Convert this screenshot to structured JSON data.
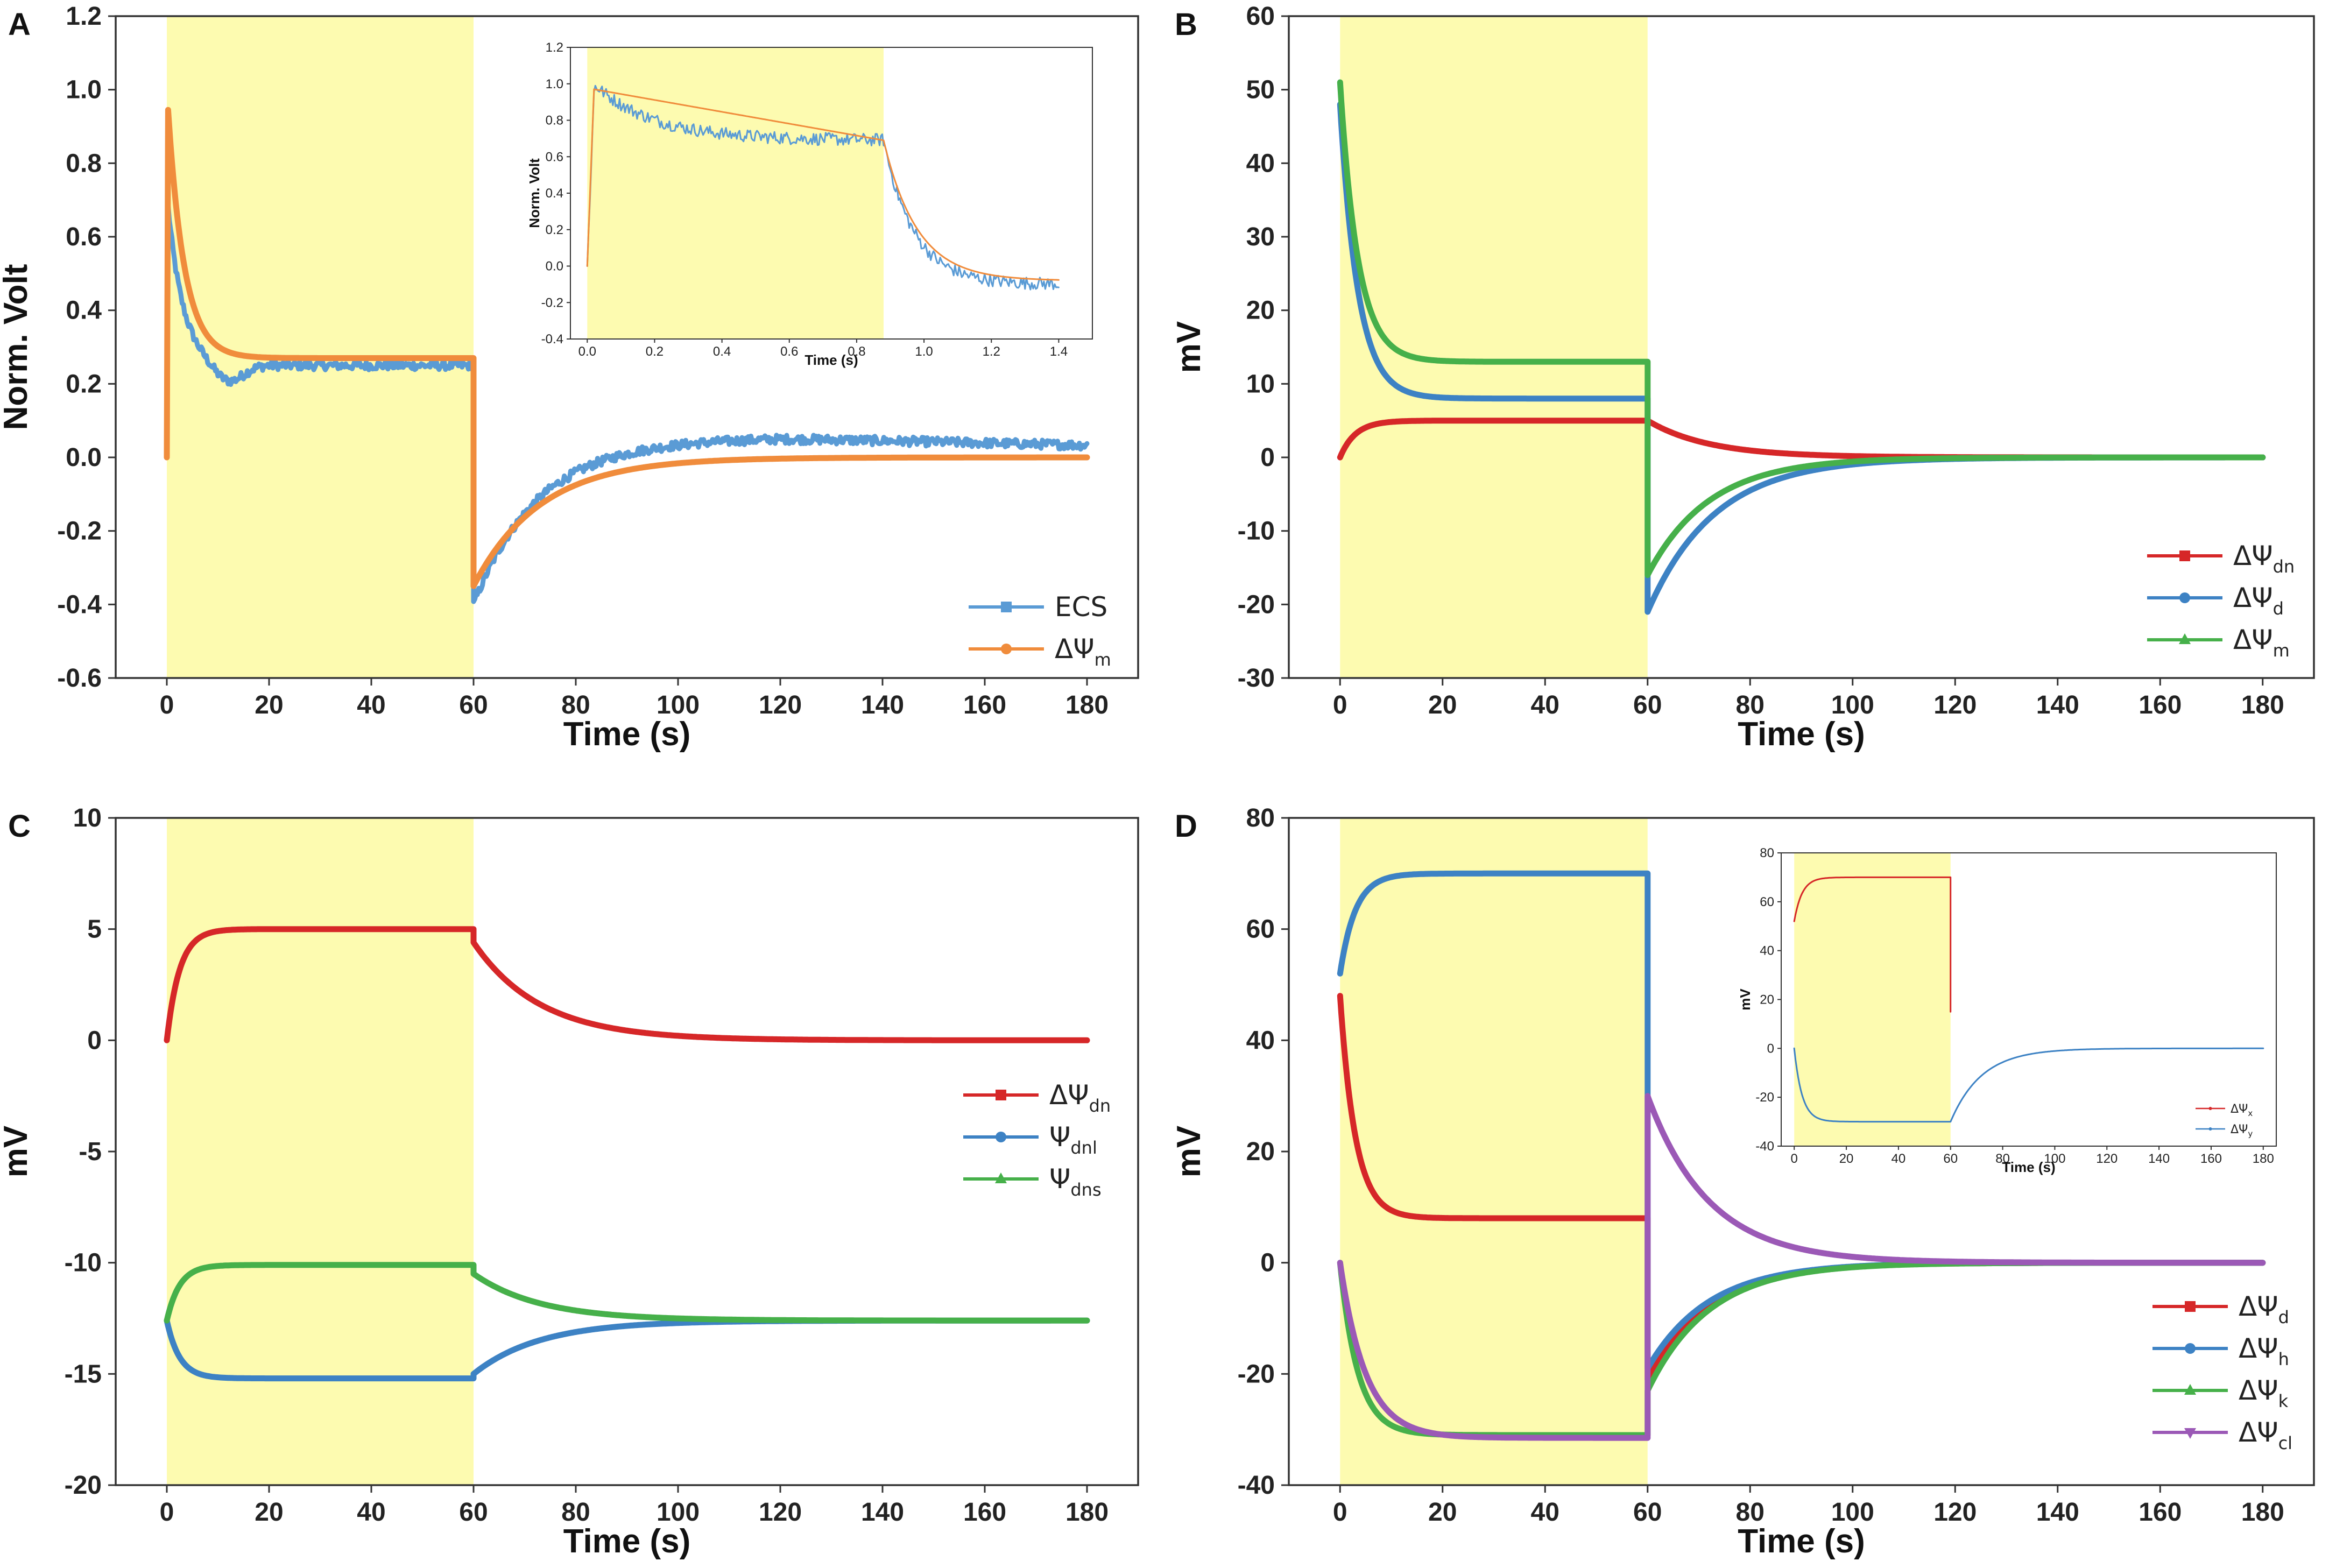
{
  "colors": {
    "red": "#d62728",
    "blue": "#3d82c4",
    "green": "#46b04a",
    "purple": "#9b59b6",
    "orange": "#f08c3c",
    "ecs_blue": "#5a9bd5",
    "highlight": "#fdfbb0"
  },
  "chart_data": [
    {
      "panel": "A",
      "type": "line",
      "xlabel": "Time (s)",
      "ylabel": "Norm. Volt",
      "xlim": [
        -10,
        190
      ],
      "ylim": [
        -0.6,
        1.2
      ],
      "xticks": [
        "0",
        "20",
        "40",
        "60",
        "80",
        "100",
        "120",
        "140",
        "160",
        "180"
      ],
      "yticks": [
        "-0.6",
        "-0.4",
        "-0.2",
        "0.0",
        "0.2",
        "0.4",
        "0.6",
        "0.8",
        "1.0",
        "1.2"
      ],
      "stimulus_window": [
        0,
        60
      ],
      "legend_position": "bottom-right",
      "series": [
        {
          "name": "ECS",
          "legend_main": "ECS",
          "legend_sub": "",
          "color": "ecs_blue",
          "marker": "square",
          "model": {
            "kind": "ecs_a",
            "noise": 0.012
          }
        },
        {
          "name": "ΔΨm",
          "legend_main": "ΔΨ",
          "legend_sub": "m",
          "color": "orange",
          "marker": "circle",
          "model": {
            "kind": "orange_a"
          }
        }
      ],
      "inset": {
        "xlabel": "Time (s)",
        "ylabel": "Norm. Volt",
        "xlim": [
          -0.05,
          1.5
        ],
        "ylim": [
          -0.4,
          1.2
        ],
        "xticks": [
          "0.0",
          "0.2",
          "0.4",
          "0.6",
          "0.8",
          "1.0",
          "1.2",
          "1.4"
        ],
        "yticks": [
          "-0.4",
          "-0.2",
          "0.0",
          "0.2",
          "0.4",
          "0.6",
          "0.8",
          "1.0",
          "1.2"
        ],
        "stimulus_window": [
          0,
          0.88
        ],
        "series": [
          {
            "name": "ECS",
            "color": "ecs_blue",
            "model": {
              "kind": "inset_a_ecs"
            }
          },
          {
            "name": "ΔΨm",
            "color": "orange",
            "model": {
              "kind": "inset_a_orange"
            }
          }
        ]
      }
    },
    {
      "panel": "B",
      "type": "line",
      "xlabel": "Time (s)",
      "ylabel": "mV",
      "xlim": [
        -10,
        190
      ],
      "ylim": [
        -30,
        60
      ],
      "xticks": [
        "0",
        "20",
        "40",
        "60",
        "80",
        "100",
        "120",
        "140",
        "160",
        "180"
      ],
      "yticks": [
        "-30",
        "-20",
        "-10",
        "0",
        "10",
        "20",
        "30",
        "40",
        "50",
        "60"
      ],
      "stimulus_window": [
        0,
        60
      ],
      "legend_position": "bottom-right",
      "series": [
        {
          "name": "ΔΨdn",
          "legend_main": "ΔΨ",
          "legend_sub": "dn",
          "color": "red",
          "marker": "square",
          "model": {
            "kind": "onoff",
            "start": 0,
            "on_tau": 3,
            "on_plateau": 5,
            "off_jump": 5,
            "off_tau": 12
          }
        },
        {
          "name": "ΔΨd",
          "legend_main": "ΔΨ",
          "legend_sub": "d",
          "color": "blue",
          "marker": "circle",
          "model": {
            "kind": "onoff",
            "start": 48,
            "on_tau": 3.5,
            "on_plateau": 8,
            "off_jump": -21,
            "off_tau": 13
          }
        },
        {
          "name": "ΔΨm",
          "legend_main": "ΔΨ",
          "legend_sub": "m",
          "color": "green",
          "marker": "triangle",
          "model": {
            "kind": "onoff",
            "start": 51,
            "on_tau": 3.5,
            "on_plateau": 13,
            "off_jump": -16,
            "off_tau": 12
          }
        }
      ]
    },
    {
      "panel": "C",
      "type": "line",
      "xlabel": "Time (s)",
      "ylabel": "mV",
      "xlim": [
        -10,
        190
      ],
      "ylim": [
        -20,
        10
      ],
      "xticks": [
        "0",
        "20",
        "40",
        "60",
        "80",
        "100",
        "120",
        "140",
        "160",
        "180"
      ],
      "yticks": [
        "-20",
        "-15",
        "-10",
        "-5",
        "0",
        "5",
        "10"
      ],
      "stimulus_window": [
        0,
        60
      ],
      "legend_position": "center-right",
      "series": [
        {
          "name": "ΔΨdn",
          "legend_main": "ΔΨ",
          "legend_sub": "dn",
          "color": "red",
          "marker": "square",
          "model": {
            "kind": "onoff",
            "start": 0,
            "on_tau": 2.5,
            "on_plateau": 5,
            "off_jump": 4.4,
            "off_tau": 13,
            "rest": 0
          }
        },
        {
          "name": "Ψdnl",
          "legend_main": "Ψ",
          "legend_sub": "dnl",
          "color": "blue",
          "marker": "circle",
          "model": {
            "kind": "onoff",
            "start": -12.6,
            "on_tau": 2.5,
            "on_plateau": -15.2,
            "off_jump": -15,
            "off_tau": 13,
            "rest": -12.6
          }
        },
        {
          "name": "Ψdns",
          "legend_main": "Ψ",
          "legend_sub": "dns",
          "color": "green",
          "marker": "triangle",
          "model": {
            "kind": "onoff",
            "start": -12.6,
            "on_tau": 2.5,
            "on_plateau": -10.1,
            "off_jump": -10.5,
            "off_tau": 13,
            "rest": -12.6
          }
        }
      ]
    },
    {
      "panel": "D",
      "type": "line",
      "xlabel": "Time (s)",
      "ylabel": "mV",
      "xlim": [
        -10,
        190
      ],
      "ylim": [
        -40,
        80
      ],
      "xticks": [
        "0",
        "20",
        "40",
        "60",
        "80",
        "100",
        "120",
        "140",
        "160",
        "180"
      ],
      "yticks": [
        "-40",
        "-20",
        "0",
        "20",
        "40",
        "60",
        "80"
      ],
      "stimulus_window": [
        0,
        60
      ],
      "legend_position": "bottom-right",
      "series": [
        {
          "name": "ΔΨd",
          "legend_main": "ΔΨ",
          "legend_sub": "d",
          "color": "red",
          "marker": "square",
          "model": {
            "kind": "onoff",
            "start": 48,
            "on_tau": 3,
            "on_plateau": 8,
            "off_jump": -21,
            "off_tau": 12,
            "rest": 0
          }
        },
        {
          "name": "ΔΨh",
          "legend_main": "ΔΨ",
          "legend_sub": "h",
          "color": "blue",
          "marker": "circle",
          "model": {
            "kind": "onoff_vjump",
            "start": 52,
            "on_tau": 3,
            "on_plateau": 70,
            "off_jump": -19,
            "off_tau": 12,
            "rest": 0
          }
        },
        {
          "name": "ΔΨk",
          "legend_main": "ΔΨ",
          "legend_sub": "k",
          "color": "green",
          "marker": "triangle",
          "model": {
            "kind": "onoff",
            "start": 0,
            "on_tau": 3.5,
            "on_plateau": -31,
            "off_jump": -23,
            "off_tau": 12,
            "rest": 0
          }
        },
        {
          "name": "ΔΨcl",
          "legend_main": "ΔΨ",
          "legend_sub": "cl",
          "color": "purple",
          "marker": "triangle-down",
          "model": {
            "kind": "onoff",
            "start": 0,
            "on_tau": 5,
            "on_plateau": -31.5,
            "off_jump": 30,
            "off_tau": 12,
            "rest": 0
          }
        }
      ],
      "inset": {
        "xlabel": "Time (s)",
        "ylabel": "mV",
        "xlim": [
          -5,
          185
        ],
        "ylim": [
          -40,
          80
        ],
        "xticks": [
          "0",
          "20",
          "40",
          "60",
          "80",
          "100",
          "120",
          "140",
          "160",
          "180"
        ],
        "yticks": [
          "-40",
          "-20",
          "0",
          "20",
          "40",
          "60",
          "80"
        ],
        "stimulus_window": [
          0,
          60
        ],
        "series": [
          {
            "name": "ΔΨx",
            "legend_main": "ΔΨ",
            "legend_sub": "x",
            "color": "red",
            "model": {
              "kind": "onoff",
              "start": 52,
              "on_tau": 3,
              "on_plateau": 70,
              "off_jump": 15,
              "off_tau": 12,
              "rest": 0,
              "end": 60
            }
          },
          {
            "name": "ΔΨy",
            "legend_main": "ΔΨ",
            "legend_sub": "y",
            "color": "blue",
            "model": {
              "kind": "onoff",
              "start": 0,
              "on_tau": 3,
              "on_plateau": -30,
              "off_jump": -30,
              "off_tau": 12,
              "rest": 0
            }
          }
        ]
      }
    }
  ]
}
